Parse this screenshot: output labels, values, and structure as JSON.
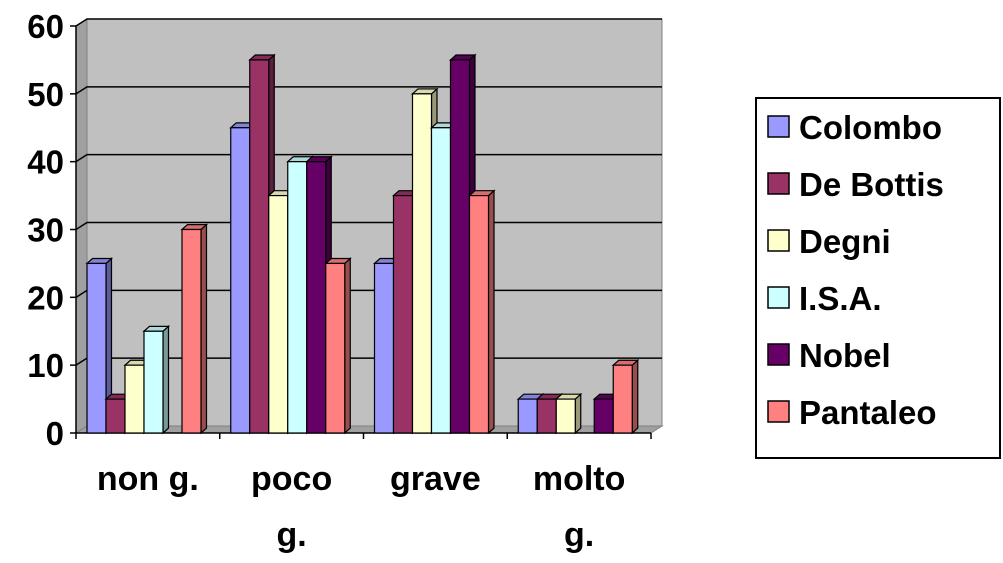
{
  "chart_data": {
    "type": "bar",
    "categories": [
      [
        "non g."
      ],
      [
        "poco",
        "g."
      ],
      [
        "grave"
      ],
      [
        "molto",
        "g."
      ]
    ],
    "series": [
      {
        "name": "Colombo",
        "color": "#9999ff",
        "values": [
          25,
          45,
          25,
          5
        ]
      },
      {
        "name": "De Bottis",
        "color": "#993366",
        "values": [
          5,
          55,
          35,
          5
        ]
      },
      {
        "name": "Degni",
        "color": "#ffffcc",
        "values": [
          10,
          35,
          50,
          5
        ]
      },
      {
        "name": "I.S.A.",
        "color": "#ccffff",
        "values": [
          15,
          40,
          45,
          0
        ]
      },
      {
        "name": "Nobel",
        "color": "#660066",
        "values": [
          0,
          40,
          55,
          5
        ]
      },
      {
        "name": "Pantaleo",
        "color": "#ff8080",
        "values": [
          30,
          25,
          35,
          10
        ]
      }
    ],
    "ylim": [
      0,
      60
    ],
    "yticks": [
      0,
      10,
      20,
      30,
      40,
      50,
      60
    ],
    "grid": true,
    "plot_background": "#c0c0c0",
    "legend_position": "right",
    "style": "3d-clustered-column"
  }
}
